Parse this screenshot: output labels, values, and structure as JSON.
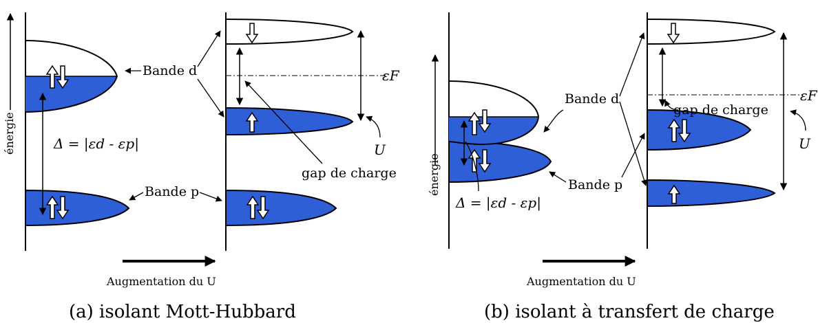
{
  "panel_a": {
    "energy_label": "énergie",
    "band_d_label": "Bande d",
    "band_p_label": "Bande p",
    "gap_label": "gap de charge",
    "delta_label": "Δ = |εd - εp|",
    "fermi_label": "εF",
    "u_label": "U",
    "axis_label": "Augmentation du U",
    "caption": "(a) isolant Mott-Hubbard"
  },
  "panel_b": {
    "energy_label": "énergie",
    "band_d_label": "Bande d",
    "band_p_label": "Bande p",
    "gap_label": "gap de charge",
    "delta_label": "Δ = |εd - εp|",
    "fermi_label": "εF",
    "u_label": "U",
    "axis_label": "Augmentation du U",
    "caption": "(b) isolant à transfert de charge"
  },
  "colors": {
    "band_fill": "#2f5fd6",
    "line": "#000000"
  }
}
